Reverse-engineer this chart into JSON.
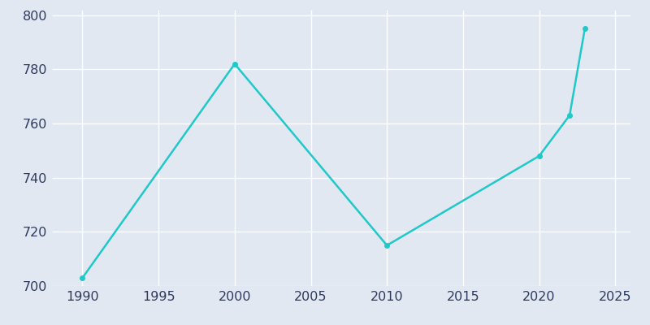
{
  "years": [
    1990,
    2000,
    2010,
    2020,
    2022,
    2023
  ],
  "population": [
    703,
    782,
    715,
    748,
    763,
    795
  ],
  "line_color": "#20C8C8",
  "bg_color": "#E2E8F2",
  "plot_bg_color": "#E2E8F2",
  "xlim": [
    1988,
    2026
  ],
  "ylim": [
    700,
    802
  ],
  "xticks": [
    1990,
    1995,
    2000,
    2005,
    2010,
    2015,
    2020,
    2025
  ],
  "yticks": [
    700,
    720,
    740,
    760,
    780,
    800
  ],
  "line_width": 1.8,
  "marker": "o",
  "marker_size": 4,
  "tick_color": "#2D3A5E",
  "tick_fontsize": 11.5,
  "grid_color": "#FFFFFF",
  "grid_linewidth": 1.0
}
